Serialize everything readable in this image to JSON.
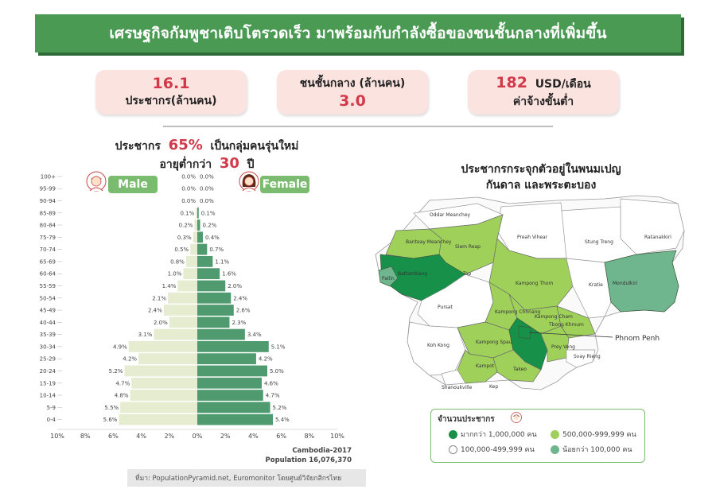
{
  "banner": {
    "title": "เศรษฐกิจกัมพูชาเติบโตรวดเร็ว  มาพร้อมกับกำลังซื้อของชนชั้นกลางที่เพิ่มขึ้น"
  },
  "stats": [
    {
      "value": "16.1",
      "label": "ประชากร(ล้านคน)"
    },
    {
      "label": "ชนชั้นกลาง  (ล้านคน)",
      "value": "3.0"
    },
    {
      "value": "182",
      "unit": "USD/เดือน",
      "label": "ค่าจ้างขั้นต่ำ"
    }
  ],
  "note": {
    "l1_pre": "ประชากร",
    "l1_val": "65%",
    "l1_post": "เป็นกลุ่มคนรุ่นใหม่",
    "l2_pre": "อายุต่ำกว่า",
    "l2_val": "30",
    "l2_post": "ปี"
  },
  "gender": {
    "male": "Male",
    "female": "Female"
  },
  "colors": {
    "male": "#e6ecd0",
    "female": "#4f9a6e",
    "accent": "#d23a4a",
    "banner": "#4a9a54"
  },
  "chart_data": {
    "type": "bar",
    "subtype": "population-pyramid",
    "categories": [
      "100+",
      "95-99",
      "90-94",
      "85-89",
      "80-84",
      "75-79",
      "70-74",
      "65-69",
      "60-64",
      "55-59",
      "50-54",
      "45-49",
      "40-44",
      "35-39",
      "30-34",
      "25-29",
      "20-24",
      "15-19",
      "10-14",
      "5-9",
      "0-4"
    ],
    "series": [
      {
        "name": "Male",
        "values": [
          0.0,
          0.0,
          0.0,
          0.1,
          0.2,
          0.3,
          0.5,
          0.8,
          1.0,
          1.4,
          2.1,
          2.4,
          2.0,
          3.1,
          4.9,
          4.2,
          5.2,
          4.7,
          4.8,
          5.5,
          5.6
        ],
        "labels": [
          "0.0%",
          "0.0%",
          "0.0%",
          "0.1%",
          "0.2%",
          "0.3%",
          "0.5%",
          "0.8%",
          "1.0%",
          "1.4%",
          "2.1%",
          "2.4%",
          "2.0%",
          "3.1%",
          "4.9%",
          "4.2%",
          "5.2%",
          "4.7%",
          "4.8%",
          "5.5%",
          "5.6%"
        ]
      },
      {
        "name": "Female",
        "values": [
          0.0,
          0.0,
          0.0,
          0.1,
          0.2,
          0.4,
          0.7,
          1.1,
          1.6,
          2.0,
          2.4,
          2.6,
          2.3,
          3.4,
          5.1,
          4.2,
          5.0,
          4.6,
          4.7,
          5.2,
          5.4
        ],
        "labels": [
          "0.0%",
          "0.0%",
          "0.0%",
          "0.1%",
          "0.2%",
          "0.4%",
          "0.7%",
          "1.1%",
          "1.6%",
          "2.0%",
          "2.4%",
          "2.6%",
          "2.3%",
          "3.4%",
          "5.1%",
          "4.2%",
          "5.0%",
          "4.6%",
          "4.7%",
          "5.2%",
          "5.4%"
        ]
      }
    ],
    "xticks": [
      "10%",
      "8%",
      "6%",
      "4%",
      "2%",
      "0%",
      "2%",
      "4%",
      "6%",
      "8%",
      "10%"
    ],
    "xlim": [
      -10,
      10
    ],
    "caption_line1": "Cambodia-2017",
    "caption_line2": "Population  16,076,370"
  },
  "source": "ที่มา: PopulationPyramid.net, Euromonitor   โดยศูนย์วิจัยกสิกรไทย",
  "map": {
    "title_l1": "ประชากรกระจุกตัวอยู่ในพนมเปญ",
    "title_l2": "กันดาล และพระตะบอง",
    "callout": "Phnom Penh",
    "provinces": [
      "Oddar Meanchey",
      "Banteay Meanchey",
      "Siem Reap",
      "Preah Vihear",
      "Stung Treng",
      "Ratanakkiri",
      "Battambang",
      "Pailin",
      "Kampong Thom",
      "Kratie",
      "Mondulkiri",
      "Pursat",
      "Kampong Chhnang",
      "Kampong Cham",
      "Tbong Khmum",
      "Koh Kong",
      "Kampong Spau",
      "Prey Veng",
      "Svay Rieng",
      "Kampot",
      "Takeo",
      "Shanoukville",
      "Kep",
      "Tap"
    ]
  },
  "legend": {
    "title": "จำนวนประชากร",
    "items": [
      {
        "label": "มากกว่า 1,000,000 คน",
        "color": "#17914a"
      },
      {
        "label": "500,000-999,999 คน",
        "color": "#9fd15a"
      },
      {
        "label": "100,000-499,999 คน",
        "color": "#ffffff"
      },
      {
        "label": "น้อยกว่า 100,000 คน",
        "color": "#6fb58e"
      }
    ]
  }
}
